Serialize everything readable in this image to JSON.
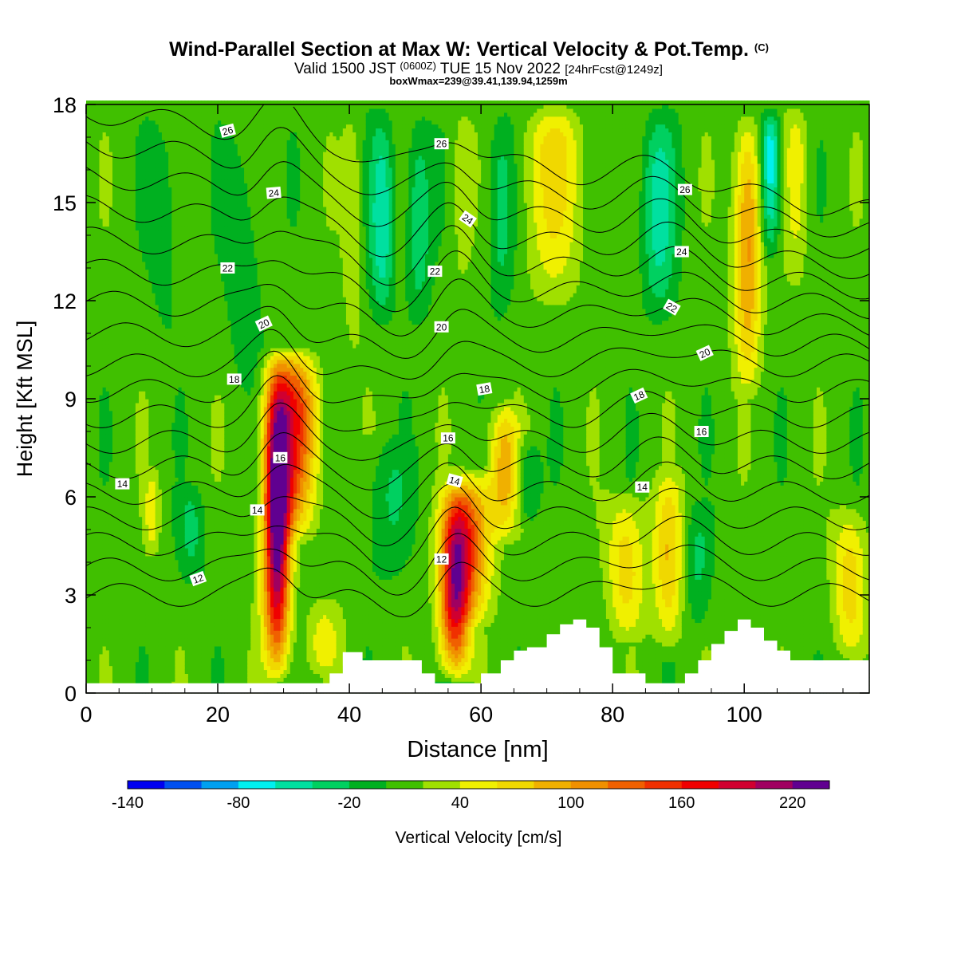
{
  "chart_data": {
    "type": "heatmap",
    "title": "Wind-Parallel Section at Max W: Vertical Velocity & Pot.Temp.",
    "title_mark": "(C)",
    "subtitle_main": "Valid 1500 JST",
    "subtitle_utc": "(0600Z)",
    "subtitle_date": "TUE 15 Nov 2022",
    "subtitle_fcst": "[24hrFcst@1249z]",
    "subtitle2": "boxWmax=239@39.41,139.94,1259m",
    "xlabel": "Distance [nm]",
    "ylabel": "Height [Kft MSL]",
    "xlim": [
      0,
      119
    ],
    "ylim": [
      0,
      18
    ],
    "xticks": [
      "0",
      "20",
      "40",
      "60",
      "80",
      "100"
    ],
    "xtick_values": [
      0,
      20,
      40,
      60,
      80,
      100
    ],
    "yticks": [
      "0",
      "3",
      "6",
      "9",
      "12",
      "15",
      "18"
    ],
    "ytick_values": [
      0,
      3,
      6,
      9,
      12,
      15,
      18
    ],
    "colorbar": {
      "label": "Vertical Velocity [cm/s]",
      "min": -140,
      "max": 240,
      "step": 20,
      "tick_labels": [
        "-140",
        "-80",
        "-20",
        "40",
        "100",
        "160",
        "220"
      ],
      "tick_values": [
        -140,
        -80,
        -20,
        40,
        100,
        160,
        220
      ],
      "colors": [
        "#0000f0",
        "#0050f0",
        "#00a0f0",
        "#00f0f0",
        "#00e0a0",
        "#00d060",
        "#00b020",
        "#40c000",
        "#a0e000",
        "#f0f000",
        "#f0d800",
        "#f0b000",
        "#f09000",
        "#f06000",
        "#f03000",
        "#f00000",
        "#d00030",
        "#a00060",
        "#600090"
      ]
    },
    "w_columns": [
      {
        "x": 29,
        "sigma_x": 1.4,
        "z0": 0.2,
        "z1": 10.6,
        "peak": 239,
        "zpeak": 5.5
      },
      {
        "x": 32,
        "sigma_x": 2.2,
        "z0": 4.5,
        "z1": 10.6,
        "peak": 130,
        "zpeak": 8.5
      },
      {
        "x": 56,
        "sigma_x": 1.6,
        "z0": 0.3,
        "z1": 6.5,
        "peak": 180,
        "zpeak": 3.0
      },
      {
        "x": 58.5,
        "sigma_x": 2.2,
        "z0": 2.0,
        "z1": 7.0,
        "peak": 110,
        "zpeak": 5.0
      },
      {
        "x": 63.5,
        "sigma_x": 1.6,
        "z0": 4.5,
        "z1": 9.0,
        "peak": 80,
        "zpeak": 7.0
      },
      {
        "x": 71,
        "sigma_x": 3.2,
        "z0": 11.5,
        "z1": 18,
        "peak": 55,
        "zpeak": 16.5
      },
      {
        "x": 82,
        "sigma_x": 2.0,
        "z0": 1.5,
        "z1": 6.5,
        "peak": 60,
        "zpeak": 4.0
      },
      {
        "x": 88.5,
        "sigma_x": 1.6,
        "z0": 1.0,
        "z1": 7.0,
        "peak": 70,
        "zpeak": 4.0
      },
      {
        "x": 100.5,
        "sigma_x": 1.4,
        "z0": 9.0,
        "z1": 18,
        "peak": 100,
        "zpeak": 14.0
      },
      {
        "x": 108,
        "sigma_x": 1.2,
        "z0": 12.0,
        "z1": 18,
        "peak": 40,
        "zpeak": 16.5
      },
      {
        "x": 116,
        "sigma_x": 1.8,
        "z0": 1.0,
        "z1": 6.0,
        "peak": 60,
        "zpeak": 3.5
      },
      {
        "x": 10,
        "sigma_x": 0.8,
        "z0": 4.0,
        "z1": 7.0,
        "peak": 40,
        "zpeak": 5.5
      },
      {
        "x": 40.5,
        "sigma_x": 1.0,
        "z0": 10.0,
        "z1": 18,
        "peak": 30,
        "zpeak": 15.0
      },
      {
        "x": 57,
        "sigma_x": 1.0,
        "z0": 12.0,
        "z1": 18,
        "peak": 25,
        "zpeak": 16.0
      },
      {
        "x": 36,
        "sigma_x": 2.0,
        "z0": 0.5,
        "z1": 3.0,
        "peak": 35,
        "zpeak": 1.5
      }
    ],
    "w_downdrafts": [
      {
        "x": 45,
        "sigma_x": 1.3,
        "z0": 11.0,
        "z1": 18,
        "peak": -65,
        "zpeak": 14.5
      },
      {
        "x": 50.5,
        "sigma_x": 1.3,
        "z0": 11.0,
        "z1": 18,
        "peak": -50,
        "zpeak": 14.5
      },
      {
        "x": 87,
        "sigma_x": 1.8,
        "z0": 11.0,
        "z1": 18,
        "peak": -60,
        "zpeak": 15.0
      },
      {
        "x": 104,
        "sigma_x": 1.0,
        "z0": 13.0,
        "z1": 18,
        "peak": -90,
        "zpeak": 16.5
      },
      {
        "x": 63,
        "sigma_x": 1.4,
        "z0": 11.0,
        "z1": 18,
        "peak": -40,
        "zpeak": 15.0
      },
      {
        "x": 16,
        "sigma_x": 1.5,
        "z0": 3.0,
        "z1": 6.5,
        "peak": -35,
        "zpeak": 5.0
      },
      {
        "x": 46,
        "sigma_x": 2.5,
        "z0": 3.0,
        "z1": 8.0,
        "peak": -30,
        "zpeak": 6.0
      },
      {
        "x": 67,
        "sigma_x": 1.2,
        "z0": 5.0,
        "z1": 8.0,
        "peak": -40,
        "zpeak": 6.5
      },
      {
        "x": 93,
        "sigma_x": 1.5,
        "z0": 1.5,
        "z1": 6.0,
        "peak": -35,
        "zpeak": 4.0
      },
      {
        "x": 24,
        "sigma_x": 2.0,
        "z0": 9.0,
        "z1": 18,
        "peak": -25,
        "zpeak": 13.0
      },
      {
        "x": 12,
        "sigma_x": 1.8,
        "z0": 10.0,
        "z1": 18,
        "peak": -20,
        "zpeak": 15.0
      }
    ],
    "terrain": {
      "x": [
        0,
        5,
        9,
        12,
        20,
        25,
        30,
        35,
        37,
        39,
        42,
        46,
        50,
        51,
        53,
        56,
        58,
        60,
        63,
        65,
        67,
        70,
        72,
        74,
        76,
        78,
        80,
        83,
        85,
        88,
        91,
        93,
        95,
        97,
        99,
        101,
        103,
        105,
        107,
        109,
        112,
        115,
        119
      ],
      "z": [
        0.3,
        0.3,
        0.3,
        0.3,
        0.3,
        0.3,
        0.3,
        0.3,
        0.6,
        1.25,
        1.0,
        1.0,
        1.0,
        0.6,
        0.3,
        0.3,
        0.3,
        0.6,
        1.0,
        1.3,
        1.4,
        1.8,
        2.1,
        2.25,
        2.0,
        1.4,
        0.6,
        0.6,
        0.3,
        0.3,
        0.6,
        1.0,
        1.5,
        1.9,
        2.25,
        2.0,
        1.6,
        1.3,
        1.0,
        1.0,
        1.0,
        1.0,
        0.6
      ]
    },
    "theta_levels": [
      10,
      11,
      12,
      13,
      14,
      15,
      16,
      17,
      18,
      19,
      20,
      21,
      22,
      23,
      24,
      25,
      26,
      27
    ],
    "theta_labels": [
      {
        "text": "26",
        "x": 21.5,
        "z": 17.2,
        "angle": -15
      },
      {
        "text": "26",
        "x": 54,
        "z": 16.8,
        "angle": 0
      },
      {
        "text": "26",
        "x": 91,
        "z": 15.4,
        "angle": 0
      },
      {
        "text": "24",
        "x": 28.5,
        "z": 15.3,
        "angle": -5
      },
      {
        "text": "24",
        "x": 58,
        "z": 14.5,
        "angle": 35
      },
      {
        "text": "24",
        "x": 90.5,
        "z": 13.5,
        "angle": 0
      },
      {
        "text": "22",
        "x": 21.5,
        "z": 13.0,
        "angle": 0
      },
      {
        "text": "22",
        "x": 53,
        "z": 12.9,
        "angle": 0
      },
      {
        "text": "22",
        "x": 89,
        "z": 11.8,
        "angle": 30
      },
      {
        "text": "20",
        "x": 27,
        "z": 11.3,
        "angle": -25
      },
      {
        "text": "20",
        "x": 54,
        "z": 11.2,
        "angle": 0
      },
      {
        "text": "20",
        "x": 94,
        "z": 10.4,
        "angle": -25
      },
      {
        "text": "18",
        "x": 22.5,
        "z": 9.6,
        "angle": 0
      },
      {
        "text": "18",
        "x": 60.5,
        "z": 9.3,
        "angle": -10
      },
      {
        "text": "18",
        "x": 84,
        "z": 9.1,
        "angle": -25
      },
      {
        "text": "16",
        "x": 55,
        "z": 7.8,
        "angle": 0
      },
      {
        "text": "16",
        "x": 29.5,
        "z": 7.2,
        "angle": 0
      },
      {
        "text": "16",
        "x": 93.5,
        "z": 8.0,
        "angle": 0
      },
      {
        "text": "14",
        "x": 5.5,
        "z": 6.4,
        "angle": 0
      },
      {
        "text": "14",
        "x": 56,
        "z": 6.5,
        "angle": 15
      },
      {
        "text": "14",
        "x": 84.5,
        "z": 6.3,
        "angle": 0
      },
      {
        "text": "14",
        "x": 26,
        "z": 5.6,
        "angle": 0
      },
      {
        "text": "12",
        "x": 17,
        "z": 3.5,
        "angle": -20
      },
      {
        "text": "12",
        "x": 54,
        "z": 4.1,
        "angle": 0
      }
    ]
  }
}
